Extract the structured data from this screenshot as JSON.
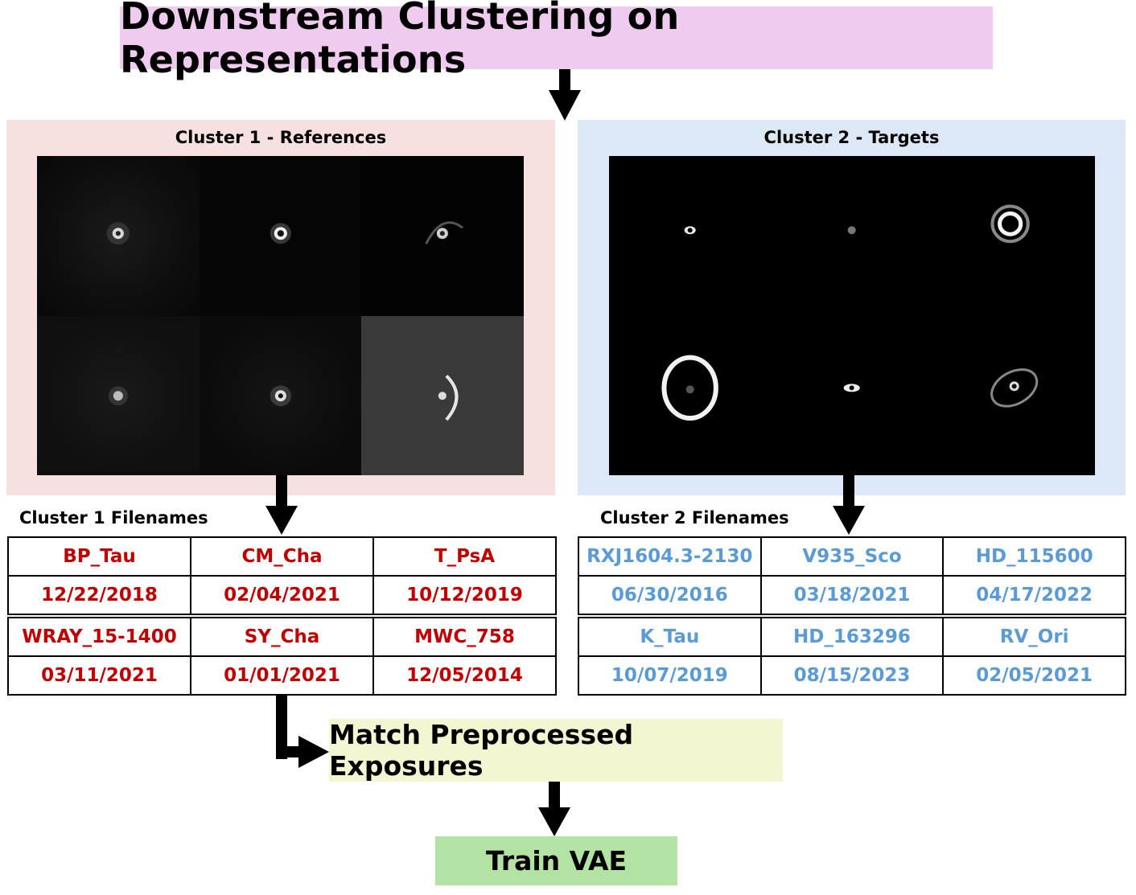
{
  "title": "Downstream Clustering on Representations",
  "cluster1": {
    "panel_title": "Cluster 1 - References",
    "filenames_label": "Cluster 1 Filenames",
    "rows": [
      {
        "names": [
          "BP_Tau",
          "CM_Cha",
          "T_PsA"
        ],
        "dates": [
          "12/22/2018",
          "02/04/2021",
          "10/12/2019"
        ]
      },
      {
        "names": [
          "WRAY_15-1400",
          "SY_Cha",
          "MWC_758"
        ],
        "dates": [
          "03/11/2021",
          "01/01/2021",
          "12/05/2014"
        ]
      }
    ]
  },
  "cluster2": {
    "panel_title": "Cluster 2 - Targets",
    "filenames_label": "Cluster 2 Filenames",
    "rows": [
      {
        "names": [
          "RXJ1604.3-2130",
          "V935_Sco",
          "HD_115600"
        ],
        "dates": [
          "06/30/2016",
          "03/18/2021",
          "04/17/2022"
        ]
      },
      {
        "names": [
          "K_Tau",
          "HD_163296",
          "RV_Ori"
        ],
        "dates": [
          "10/07/2019",
          "08/15/2023",
          "02/05/2021"
        ]
      }
    ]
  },
  "match_label": "Match Preprocessed Exposures",
  "train_label": "Train VAE",
  "colors": {
    "title_bg": "#efcbef",
    "cluster1_bg": "#f6e0e0",
    "cluster2_bg": "#dce8f5",
    "cluster1_text": "#c00000",
    "cluster2_text": "#5b9bd5",
    "match_bg": "#f3f6d0",
    "train_bg": "#b2e3a2"
  }
}
